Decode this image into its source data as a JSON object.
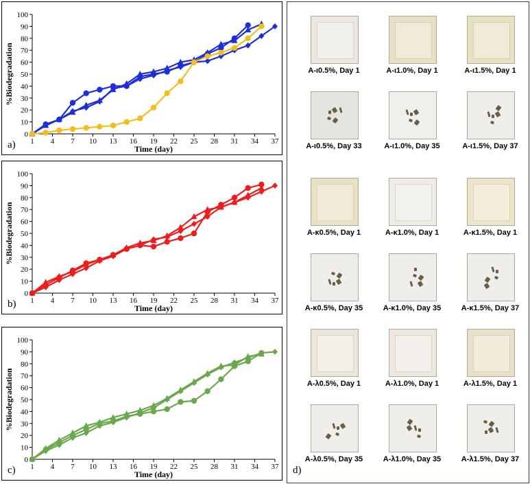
{
  "chart_data": [
    {
      "type": "line",
      "panel": "a)",
      "ylabel": "%Biodegradation",
      "xlabel": "Time (day)",
      "x_ticks": [
        1,
        4,
        7,
        10,
        13,
        16,
        19,
        22,
        25,
        28,
        31,
        34,
        37
      ],
      "y_ticks": [
        0,
        10,
        20,
        30,
        40,
        50,
        60,
        70,
        80,
        90,
        100
      ],
      "xlim": [
        1,
        37
      ],
      "ylim": [
        0,
        100
      ],
      "grid": false,
      "colors": {
        "series1": "#1f2fd6",
        "series2": "#1f2fd6",
        "series3": "#1f2fd6",
        "series4": "#f2be1e"
      },
      "series": [
        {
          "marker": "circle",
          "color": "#1f2fd6",
          "x": [
            1,
            3,
            5,
            7,
            9,
            11,
            13,
            15,
            17,
            19,
            21,
            23,
            25,
            27,
            29,
            31,
            33
          ],
          "y": [
            0,
            8,
            12,
            26,
            34,
            37,
            40,
            40,
            48,
            50,
            52,
            57,
            60,
            67,
            72,
            80,
            91
          ]
        },
        {
          "marker": "triangle",
          "color": "#1f2fd6",
          "x": [
            1,
            3,
            5,
            7,
            9,
            11,
            13,
            15,
            17,
            19,
            21,
            23,
            25,
            27,
            29,
            31,
            33,
            35
          ],
          "y": [
            0,
            7,
            12,
            18,
            24,
            28,
            37,
            42,
            50,
            52,
            55,
            60,
            62,
            68,
            75,
            78,
            87,
            92
          ]
        },
        {
          "marker": "diamond",
          "color": "#1f2fd6",
          "x": [
            1,
            3,
            5,
            7,
            9,
            11,
            13,
            15,
            17,
            19,
            21,
            23,
            25,
            27,
            29,
            31,
            33,
            35,
            37
          ],
          "y": [
            0,
            8,
            12,
            19,
            22,
            27,
            38,
            40,
            46,
            49,
            53,
            56,
            60,
            61,
            65,
            70,
            74,
            82,
            90
          ]
        },
        {
          "marker": "circle",
          "color": "#f2be1e",
          "x": [
            1,
            3,
            5,
            7,
            9,
            11,
            13,
            15,
            17,
            19,
            21,
            23,
            25,
            27,
            29,
            31,
            33,
            35
          ],
          "y": [
            0,
            1,
            3,
            4,
            5,
            6,
            7,
            10,
            13,
            22,
            34,
            44,
            60,
            65,
            68,
            72,
            80,
            90
          ]
        }
      ]
    },
    {
      "type": "line",
      "panel": "b)",
      "ylabel": "%Biodegradation",
      "xlabel": "Time (day)",
      "x_ticks": [
        1,
        4,
        7,
        10,
        13,
        16,
        19,
        22,
        25,
        28,
        31,
        34,
        37
      ],
      "y_ticks": [
        0,
        10,
        20,
        30,
        40,
        50,
        60,
        70,
        80,
        90,
        100
      ],
      "xlim": [
        1,
        37
      ],
      "ylim": [
        0,
        100
      ],
      "grid": false,
      "colors": {
        "series": "#ee1c1c"
      },
      "series": [
        {
          "marker": "circle",
          "color": "#ee1c1c",
          "x": [
            1,
            3,
            5,
            7,
            9,
            11,
            13,
            15,
            17,
            19,
            21,
            23,
            25,
            27,
            29,
            31,
            33,
            35
          ],
          "y": [
            0,
            7,
            13,
            19,
            25,
            28,
            32,
            37,
            40,
            39,
            43,
            46,
            50,
            68,
            74,
            80,
            88,
            91
          ]
        },
        {
          "marker": "triangle",
          "color": "#ee1c1c",
          "x": [
            1,
            3,
            5,
            7,
            9,
            11,
            13,
            15,
            17,
            19,
            21,
            23,
            25,
            27,
            29,
            31,
            33,
            35
          ],
          "y": [
            0,
            9,
            14,
            18,
            24,
            28,
            32,
            38,
            42,
            44,
            48,
            55,
            64,
            70,
            72,
            76,
            82,
            88
          ]
        },
        {
          "marker": "diamond",
          "color": "#ee1c1c",
          "x": [
            1,
            3,
            5,
            7,
            9,
            11,
            13,
            15,
            17,
            19,
            21,
            23,
            25,
            27,
            29,
            31,
            33,
            35,
            37
          ],
          "y": [
            0,
            5,
            11,
            16,
            21,
            27,
            31,
            37,
            40,
            45,
            47,
            52,
            58,
            64,
            72,
            76,
            80,
            85,
            90
          ]
        }
      ]
    },
    {
      "type": "line",
      "panel": "c)",
      "ylabel": "%Biodegradation",
      "xlabel": "Time (day)",
      "x_ticks": [
        1,
        4,
        7,
        10,
        13,
        16,
        19,
        22,
        25,
        28,
        31,
        34,
        37
      ],
      "y_ticks": [
        0,
        10,
        20,
        30,
        40,
        50,
        60,
        70,
        80,
        90,
        100
      ],
      "xlim": [
        1,
        37
      ],
      "ylim": [
        0,
        100
      ],
      "grid": false,
      "colors": {
        "series": "#6aa84f"
      },
      "series": [
        {
          "marker": "circle",
          "color": "#6aa84f",
          "x": [
            1,
            3,
            5,
            7,
            9,
            11,
            13,
            15,
            17,
            19,
            21,
            23,
            25,
            27,
            29,
            31,
            33,
            35
          ],
          "y": [
            0,
            8,
            14,
            20,
            25,
            30,
            32,
            36,
            38,
            40,
            42,
            48,
            49,
            57,
            67,
            78,
            82,
            89
          ]
        },
        {
          "marker": "triangle",
          "color": "#6aa84f",
          "x": [
            1,
            3,
            5,
            7,
            9,
            11,
            13,
            15,
            17,
            19,
            21,
            23,
            25,
            27,
            29,
            31,
            33,
            35
          ],
          "y": [
            0,
            9,
            16,
            22,
            28,
            31,
            35,
            38,
            41,
            45,
            51,
            58,
            65,
            72,
            78,
            79,
            86,
            88
          ]
        },
        {
          "marker": "diamond",
          "color": "#6aa84f",
          "x": [
            1,
            3,
            5,
            7,
            9,
            11,
            13,
            15,
            17,
            19,
            21,
            23,
            25,
            27,
            29,
            31,
            33,
            35,
            37
          ],
          "y": [
            0,
            7,
            12,
            18,
            22,
            28,
            31,
            35,
            39,
            43,
            50,
            57,
            64,
            71,
            77,
            81,
            85,
            89,
            90
          ]
        }
      ]
    }
  ],
  "panel_d": {
    "label": "d)",
    "rows": [
      {
        "items": [
          {
            "caption": "A-ι0.5%, Day 1",
            "state": "film",
            "tint": "#ece8df"
          },
          {
            "caption": "A-ι1.0%, Day 1",
            "state": "film",
            "tint": "#e8dfc4"
          },
          {
            "caption": "A-ι1.5%, Day 1",
            "state": "film",
            "tint": "#e9e0c2"
          }
        ]
      },
      {
        "items": [
          {
            "caption": "A-ι0.5%, Day 33",
            "state": "fragments",
            "tint": "#e6e4df"
          },
          {
            "caption": "A-ι1.0%, Day 35",
            "state": "fragments",
            "tint": "#efefec"
          },
          {
            "caption": "A-ι1.5%, Day 37",
            "state": "fragments",
            "tint": "#efeeea"
          }
        ]
      },
      {
        "items": [
          {
            "caption": "A-κ0.5%, Day 1",
            "state": "film",
            "tint": "#eae0c6"
          },
          {
            "caption": "A-κ1.0%, Day 1",
            "state": "film",
            "tint": "#efece5"
          },
          {
            "caption": "A-κ1.5%, Day 1",
            "state": "film",
            "tint": "#ece5c8"
          }
        ]
      },
      {
        "items": [
          {
            "caption": "A-κ0.5%, Day 35",
            "state": "fragments",
            "tint": "#efeeea"
          },
          {
            "caption": "A-κ1.0%, Day 35",
            "state": "fragments",
            "tint": "#efeeea"
          },
          {
            "caption": "A-κ1.5%, Day 37",
            "state": "fragments",
            "tint": "#efeeea"
          }
        ]
      },
      {
        "items": [
          {
            "caption": "A-λ0.5%, Day 1",
            "state": "film",
            "tint": "#ebe7dc"
          },
          {
            "caption": "A-λ1.0%, Day 1",
            "state": "film",
            "tint": "#ede9e1"
          },
          {
            "caption": "A-λ1.5%, Day 1",
            "state": "film",
            "tint": "#e8e0c8"
          }
        ]
      },
      {
        "items": [
          {
            "caption": "A-λ0.5%, Day 35",
            "state": "fragments",
            "tint": "#efeeea"
          },
          {
            "caption": "A-λ1.0%, Day 35",
            "state": "fragments",
            "tint": "#efeeea"
          },
          {
            "caption": "A-λ1.5%, Day 37",
            "state": "fragments",
            "tint": "#efeeea"
          }
        ]
      }
    ]
  }
}
